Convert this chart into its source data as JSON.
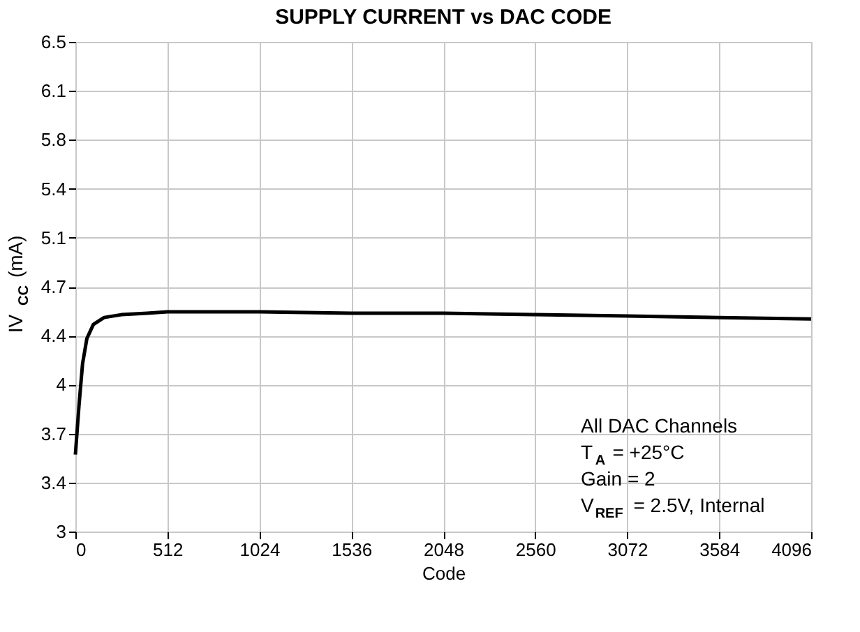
{
  "chart_data": {
    "type": "line",
    "title": "SUPPLY CURRENT vs DAC CODE",
    "xlabel": "Code",
    "ylabel": "IV$_{CC}$ (mA)",
    "x": [
      0,
      20,
      40,
      64,
      100,
      160,
      256,
      400,
      512,
      640,
      1024,
      1536,
      2048,
      2560,
      3072,
      3584,
      4096
    ],
    "series": [
      {
        "color": "#000000",
        "values": [
          3.55,
          3.9,
          4.2,
          4.38,
          4.48,
          4.53,
          4.55,
          4.56,
          4.57,
          4.57,
          4.57,
          4.56,
          4.56,
          4.55,
          4.54,
          4.53,
          4.52
        ]
      }
    ],
    "xlim": [
      0,
      4096
    ],
    "xticks": [
      0,
      512,
      1024,
      1536,
      2048,
      2560,
      3072,
      3584,
      4096
    ],
    "ylim": [
      3,
      6.5
    ],
    "yticks": [
      3,
      {
        "value": 3.35,
        "label": "3.4"
      },
      3.7,
      {
        "value": 4.05,
        "label": "4"
      },
      4.4,
      {
        "value": 4.75,
        "label": "4.7"
      },
      5.1,
      {
        "value": 5.45,
        "label": "5.4"
      },
      5.8,
      {
        "value": 6.15,
        "label": "6.1"
      },
      6.5
    ],
    "grid": true,
    "marker": "none",
    "line_style": "solid",
    "annotations": [
      "All DAC Channels",
      "T$_{A}$ = +25°C",
      "Gain = 2",
      "V$_{REF}$ = 2.5V, Internal"
    ]
  }
}
